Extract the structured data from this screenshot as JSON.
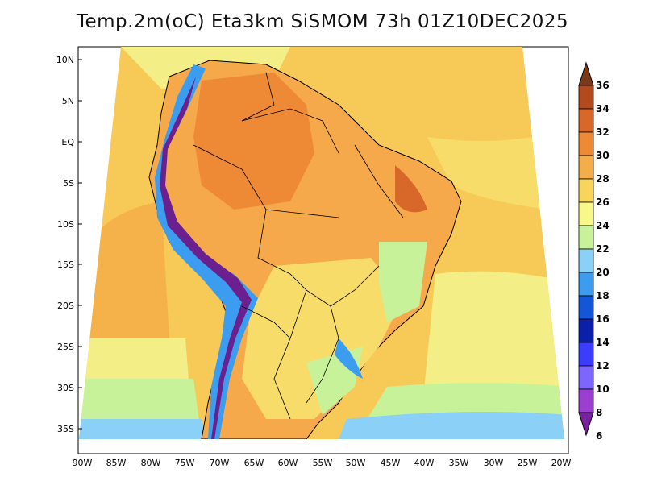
{
  "title": "Temp.2m(oC) Eta3km SiSMOM 73h 01Z10DEC2025",
  "lat_labels": [
    "10N",
    "5N",
    "EQ",
    "5S",
    "10S",
    "15S",
    "20S",
    "25S",
    "30S",
    "35S"
  ],
  "lon_labels": [
    "90W",
    "85W",
    "80W",
    "75W",
    "70W",
    "65W",
    "60W",
    "55W",
    "50W",
    "45W",
    "40W",
    "35W",
    "30W",
    "25W",
    "20W"
  ],
  "colorbar": {
    "ticks": [
      "6",
      "8",
      "10",
      "12",
      "14",
      "16",
      "18",
      "20",
      "22",
      "24",
      "26",
      "28",
      "30",
      "32",
      "34",
      "36"
    ],
    "colors": [
      "#7a1fa0",
      "#9c3fd0",
      "#7d66ff",
      "#3c3cff",
      "#0a1faa",
      "#1456d8",
      "#3c9cf0",
      "#8ad0f7",
      "#c8f29a",
      "#f7f78a",
      "#f8d55a",
      "#f5ac4a",
      "#ee8a35",
      "#d8682a",
      "#b34a1e",
      "#7a3a1a"
    ]
  },
  "colors": {
    "ocean_base": "#f7c956",
    "land_base": "#f5a94a",
    "andes": "#6b2090"
  }
}
